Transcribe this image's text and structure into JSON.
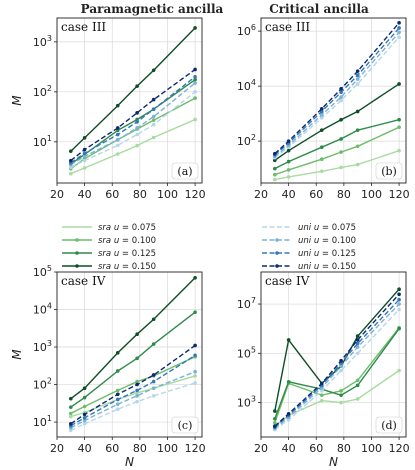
{
  "column_titles": [
    "Paramagnetic ancilla",
    "Critical ancilla"
  ],
  "legend": {
    "sra": [
      {
        "scheme": "sra",
        "u": "0.075",
        "color": "#a8dba0",
        "dash": false
      },
      {
        "scheme": "sra",
        "u": "0.100",
        "color": "#6cbd6b",
        "dash": false
      },
      {
        "scheme": "sra",
        "u": "0.125",
        "color": "#2e8b4a",
        "dash": false
      },
      {
        "scheme": "sra",
        "u": "0.150",
        "color": "#0e4d27",
        "dash": false
      }
    ],
    "uni": [
      {
        "scheme": "uni",
        "u": "0.075",
        "color": "#b6d6ea",
        "dash": true
      },
      {
        "scheme": "uni",
        "u": "0.100",
        "color": "#7ab2d6",
        "dash": true
      },
      {
        "scheme": "uni",
        "u": "0.125",
        "color": "#3478b8",
        "dash": true
      },
      {
        "scheme": "uni",
        "u": "0.150",
        "color": "#0d2a6e",
        "dash": true
      }
    ]
  },
  "chart_data": [
    {
      "type": "line",
      "panel_label": "(a)",
      "case_label": "case III",
      "xlabel": "",
      "ylabel": "M",
      "yscale": "log",
      "xlim": [
        20,
        125
      ],
      "ylim": [
        1.5,
        3000
      ],
      "xticks": [
        20,
        40,
        60,
        80,
        100,
        120
      ],
      "yticks": [
        10,
        100,
        1000
      ],
      "ytick_labels": [
        "10^1",
        "10^2",
        "10^3"
      ],
      "grid": true,
      "x": [
        30,
        40,
        64,
        78,
        90,
        120
      ],
      "series": [
        {
          "name": "sra u = 0.075",
          "values": [
            2.3,
            3.0,
            5.7,
            8.4,
            12.2,
            28
          ]
        },
        {
          "name": "sra u = 0.100",
          "values": [
            2.9,
            4.6,
            11,
            18,
            27,
            75
          ]
        },
        {
          "name": "sra u = 0.125",
          "values": [
            3.6,
            5.6,
            17,
            28,
            45,
            175
          ]
        },
        {
          "name": "sra u = 0.150",
          "values": [
            6.5,
            12,
            53,
            130,
            270,
            1900
          ]
        },
        {
          "name": "uni u = 0.075",
          "values": [
            3.1,
            4.2,
            8.5,
            14,
            22,
            100
          ]
        },
        {
          "name": "uni u = 0.100",
          "values": [
            3.5,
            5.1,
            11,
            19,
            32,
            150
          ]
        },
        {
          "name": "uni u = 0.125",
          "values": [
            3.8,
            5.9,
            14,
            25,
            45,
            200
          ]
        },
        {
          "name": "uni u = 0.150",
          "values": [
            4.2,
            7.0,
            19,
            38,
            70,
            280
          ]
        }
      ]
    },
    {
      "type": "line",
      "panel_label": "(b)",
      "case_label": "case III",
      "xlabel": "",
      "ylabel": "",
      "yscale": "log",
      "xlim": [
        20,
        125
      ],
      "ylim": [
        3,
        3000000
      ],
      "xticks": [
        20,
        40,
        60,
        80,
        100,
        120
      ],
      "yticks": [
        100,
        10000,
        1000000
      ],
      "ytick_labels": [
        "10^2",
        "10^4",
        "10^6"
      ],
      "grid": true,
      "x": [
        30,
        40,
        64,
        78,
        90,
        120
      ],
      "series": [
        {
          "name": "sra u = 0.075",
          "values": [
            4,
            5,
            8,
            11,
            14,
            45
          ]
        },
        {
          "name": "sra u = 0.100",
          "values": [
            6,
            9,
            22,
            40,
            65,
            320
          ]
        },
        {
          "name": "sra u = 0.125",
          "values": [
            10,
            18,
            60,
            120,
            250,
            600
          ]
        },
        {
          "name": "sra u = 0.150",
          "values": [
            20,
            45,
            250,
            600,
            1200,
            12000
          ]
        },
        {
          "name": "uni u = 0.075",
          "values": [
            25,
            60,
            700,
            3000,
            12000,
            600000
          ]
        },
        {
          "name": "uni u = 0.100",
          "values": [
            28,
            70,
            900,
            4000,
            18000,
            900000
          ]
        },
        {
          "name": "uni u = 0.125",
          "values": [
            32,
            85,
            1200,
            6000,
            25000,
            1300000
          ]
        },
        {
          "name": "uni u = 0.150",
          "values": [
            35,
            100,
            1500,
            8000,
            35000,
            2000000
          ]
        }
      ]
    },
    {
      "type": "line",
      "panel_label": "(c)",
      "case_label": "case IV",
      "xlabel": "N",
      "ylabel": "M",
      "yscale": "log",
      "xlim": [
        20,
        125
      ],
      "ylim": [
        4,
        100000
      ],
      "xticks": [
        20,
        40,
        60,
        80,
        100,
        120
      ],
      "yticks": [
        10,
        100,
        1000,
        10000,
        100000
      ],
      "ytick_labels": [
        "10^1",
        "10^2",
        "10^3",
        "10^4",
        "10^5"
      ],
      "grid": true,
      "x": [
        30,
        40,
        64,
        78,
        90,
        120
      ],
      "series": [
        {
          "name": "sra u = 0.075",
          "values": [
            14,
            18,
            40,
            60,
            80,
            170
          ]
        },
        {
          "name": "sra u = 0.100",
          "values": [
            17,
            26,
            70,
            120,
            170,
            550
          ]
        },
        {
          "name": "sra u = 0.125",
          "values": [
            25,
            45,
            230,
            500,
            1200,
            8500
          ]
        },
        {
          "name": "sra u = 0.150",
          "values": [
            42,
            80,
            700,
            2200,
            5500,
            70000
          ]
        },
        {
          "name": "uni u = 0.075",
          "values": [
            6,
            9,
            22,
            35,
            50,
            110
          ]
        },
        {
          "name": "uni u = 0.100",
          "values": [
            7,
            11,
            30,
            50,
            80,
            220
          ]
        },
        {
          "name": "uni u = 0.125",
          "values": [
            8,
            13,
            40,
            70,
            120,
            600
          ]
        },
        {
          "name": "uni u = 0.150",
          "values": [
            9,
            16,
            55,
            100,
            180,
            1100
          ]
        }
      ]
    },
    {
      "type": "line",
      "panel_label": "(d)",
      "case_label": "case IV",
      "xlabel": "N",
      "ylabel": "",
      "yscale": "log",
      "xlim": [
        20,
        125
      ],
      "ylim": [
        40,
        200000000
      ],
      "xticks": [
        20,
        40,
        60,
        80,
        100,
        120
      ],
      "yticks": [
        1000,
        100000,
        10000000
      ],
      "ytick_labels": [
        "10^3",
        "10^5",
        "10^7"
      ],
      "grid": true,
      "x": [
        30,
        40,
        64,
        78,
        90,
        120
      ],
      "series": [
        {
          "name": "sra u = 0.075",
          "values": [
            110,
            300,
            1200,
            1000,
            1400,
            20000
          ]
        },
        {
          "name": "sra u = 0.100",
          "values": [
            150,
            6000,
            2000,
            3000,
            8000,
            1100000
          ]
        },
        {
          "name": "sra u = 0.125",
          "values": [
            220,
            7000,
            3500,
            2000,
            5000,
            1000000
          ]
        },
        {
          "name": "sra u = 0.150",
          "values": [
            450,
            350000,
            6000,
            30000,
            500000,
            40000000
          ]
        },
        {
          "name": "uni u = 0.075",
          "values": [
            80,
            200,
            3000,
            20000,
            100000,
            6000000
          ]
        },
        {
          "name": "uni u = 0.100",
          "values": [
            90,
            250,
            4000,
            30000,
            180000,
            10000000
          ]
        },
        {
          "name": "uni u = 0.125",
          "values": [
            100,
            300,
            5000,
            40000,
            250000,
            15000000
          ]
        },
        {
          "name": "uni u = 0.150",
          "values": [
            110,
            350,
            6000,
            50000,
            350000,
            25000000
          ]
        }
      ]
    }
  ]
}
